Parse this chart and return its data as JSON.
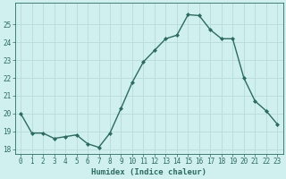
{
  "x": [
    0,
    1,
    2,
    3,
    4,
    5,
    6,
    7,
    8,
    9,
    10,
    11,
    12,
    13,
    14,
    15,
    16,
    17,
    18,
    19,
    20,
    21,
    22,
    23
  ],
  "y": [
    20.0,
    18.9,
    18.9,
    18.6,
    18.7,
    18.8,
    18.3,
    18.1,
    18.9,
    20.3,
    21.75,
    22.9,
    23.55,
    24.2,
    24.4,
    25.55,
    25.5,
    24.7,
    24.2,
    24.2,
    22.0,
    20.7,
    20.15,
    19.4
  ],
  "line_color": "#2d6b5e",
  "marker": "D",
  "marker_size": 2.0,
  "bg_color": "#cff0ee",
  "grid_color": "#b8dbd8",
  "xlabel": "Humidex (Indice chaleur)",
  "xlim": [
    -0.5,
    23.5
  ],
  "ylim": [
    17.75,
    26.2
  ],
  "yticks": [
    18,
    19,
    20,
    21,
    22,
    23,
    24,
    25
  ],
  "xticks": [
    0,
    1,
    2,
    3,
    4,
    5,
    6,
    7,
    8,
    9,
    10,
    11,
    12,
    13,
    14,
    15,
    16,
    17,
    18,
    19,
    20,
    21,
    22,
    23
  ],
  "xlabel_fontsize": 6.5,
  "tick_fontsize": 5.5,
  "line_width": 1.0
}
